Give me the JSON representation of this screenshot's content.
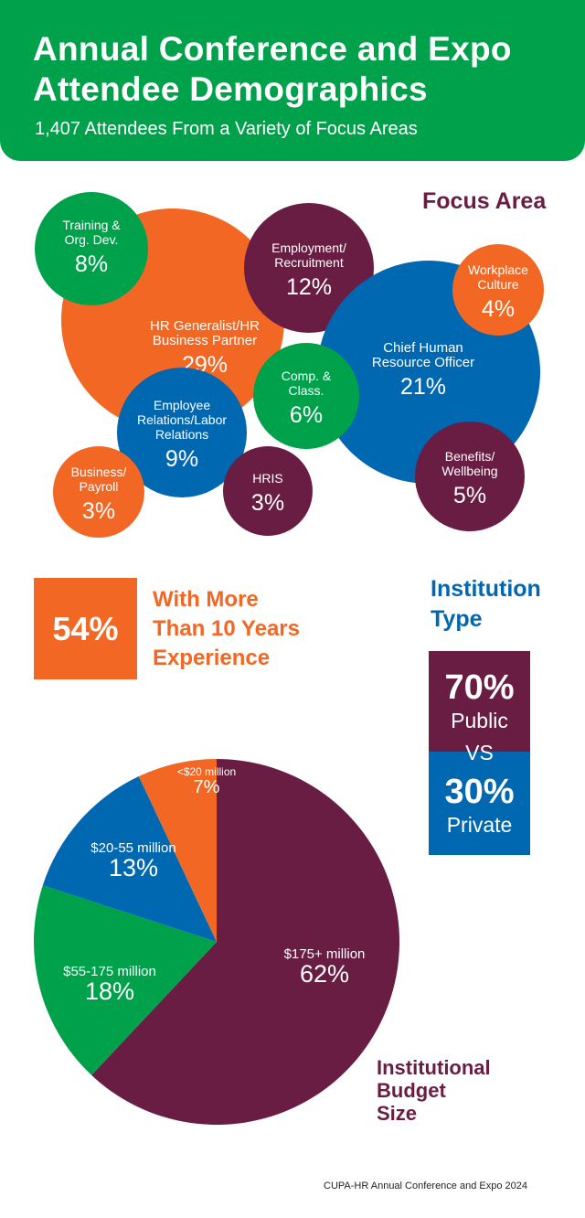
{
  "header": {
    "title_line1": "Annual Conference and Expo",
    "title_line2": "Attendee Demographics",
    "subtitle": "1,407 Attendees From a Variety of Focus Areas"
  },
  "colors": {
    "green": "#00a14b",
    "orange": "#f26724",
    "maroon": "#6a1d42",
    "blue": "#0067b1"
  },
  "experience": {
    "value": "54%",
    "line1": "With More",
    "line2": "Than 10 Years",
    "line3": "Experience"
  },
  "institution_type": {
    "title_line1": "Institution",
    "title_line2": "Type",
    "public_value": "70%",
    "public_label": "Public",
    "vs": "VS",
    "private_value": "30%",
    "private_label": "Private"
  },
  "footer": "CUPA-HR Annual Conference and Expo 2024",
  "chart_data": [
    {
      "type": "bubble",
      "title": "Focus Area",
      "items": [
        {
          "lines": [
            "HR Generalist/HR",
            "Business Partner"
          ],
          "value": 29,
          "label": "29%",
          "color": "orange"
        },
        {
          "lines": [
            "Training &",
            "Org. Dev."
          ],
          "value": 8,
          "label": "8%",
          "color": "green"
        },
        {
          "lines": [
            "Employment/",
            "Recruitment"
          ],
          "value": 12,
          "label": "12%",
          "color": "maroon"
        },
        {
          "lines": [
            "Chief Human",
            "Resource Officer"
          ],
          "value": 21,
          "label": "21%",
          "color": "blue"
        },
        {
          "lines": [
            "Workplace",
            "Culture"
          ],
          "value": 4,
          "label": "4%",
          "color": "orange"
        },
        {
          "lines": [
            "Comp. &",
            "Class."
          ],
          "value": 6,
          "label": "6%",
          "color": "green"
        },
        {
          "lines": [
            "Employee",
            "Relations/Labor",
            "Relations"
          ],
          "value": 9,
          "label": "9%",
          "color": "blue"
        },
        {
          "lines": [
            "Business/",
            "Payroll"
          ],
          "value": 3,
          "label": "3%",
          "color": "orange"
        },
        {
          "lines": [
            "HRIS"
          ],
          "value": 3,
          "label": "3%",
          "color": "maroon"
        },
        {
          "lines": [
            "Benefits/",
            "Wellbeing"
          ],
          "value": 5,
          "label": "5%",
          "color": "maroon"
        }
      ]
    },
    {
      "type": "pie",
      "title_lines": [
        "Institutional",
        "Budget",
        "Size"
      ],
      "slices": [
        {
          "label": "$175+ million",
          "value": 62,
          "text": "62%",
          "color": "maroon"
        },
        {
          "label": "$55-175 million",
          "value": 18,
          "text": "18%",
          "color": "green"
        },
        {
          "label": "$20-55 million",
          "value": 13,
          "text": "13%",
          "color": "blue"
        },
        {
          "label": "<$20 million",
          "value": 7,
          "text": "7%",
          "color": "orange"
        }
      ]
    }
  ]
}
